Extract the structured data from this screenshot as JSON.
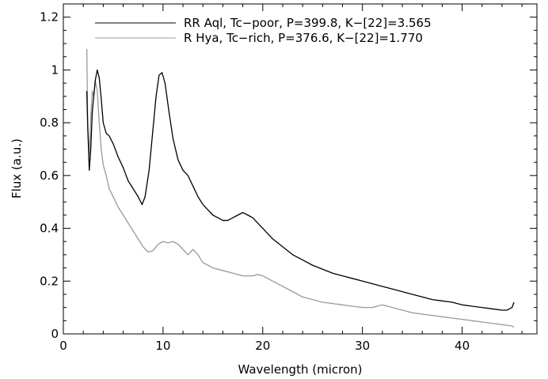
{
  "chart_data": {
    "type": "line",
    "title": "",
    "xlabel": "Wavelength (micron)",
    "ylabel": "Flux (a.u.)",
    "xlim": [
      0,
      47.5
    ],
    "ylim": [
      0,
      1.25
    ],
    "xticks": [
      0,
      10,
      20,
      30,
      40
    ],
    "yticks": [
      0,
      0.2,
      0.4,
      0.6,
      0.8,
      1,
      1.2
    ],
    "ytick_labels": [
      "0",
      "0.2",
      "0.4",
      "0.6",
      "0.8",
      "1",
      "1.2"
    ],
    "grid": false,
    "legend_position": "top-right",
    "series": [
      {
        "name": "RR Aql, Tc−poor, P=399.8, K−[22]=3.565",
        "color": "#000000",
        "x": [
          2.35,
          2.45,
          2.6,
          2.75,
          2.9,
          3.05,
          3.2,
          3.4,
          3.6,
          3.8,
          4.0,
          4.3,
          4.6,
          5.0,
          5.5,
          6.0,
          6.5,
          7.0,
          7.5,
          7.9,
          8.2,
          8.6,
          9.0,
          9.3,
          9.6,
          9.9,
          10.2,
          10.6,
          11.0,
          11.5,
          12.0,
          12.5,
          13.0,
          13.5,
          14.0,
          14.5,
          15.0,
          15.5,
          16.0,
          16.5,
          17.0,
          17.5,
          18.0,
          18.5,
          19.0,
          19.5,
          20.0,
          21.0,
          22.0,
          23.0,
          24.0,
          25.0,
          26.0,
          27.0,
          28.0,
          29.0,
          30.0,
          31.0,
          32.0,
          33.0,
          34.0,
          35.0,
          36.0,
          37.0,
          38.0,
          39.0,
          40.0,
          41.0,
          42.0,
          43.0,
          44.0,
          44.5,
          45.0,
          45.2
        ],
        "y": [
          0.92,
          0.78,
          0.62,
          0.7,
          0.84,
          0.9,
          0.96,
          1.0,
          0.97,
          0.89,
          0.8,
          0.76,
          0.75,
          0.72,
          0.67,
          0.63,
          0.58,
          0.55,
          0.52,
          0.49,
          0.52,
          0.62,
          0.78,
          0.9,
          0.98,
          0.99,
          0.95,
          0.84,
          0.74,
          0.66,
          0.62,
          0.6,
          0.56,
          0.52,
          0.49,
          0.47,
          0.45,
          0.44,
          0.43,
          0.43,
          0.44,
          0.45,
          0.46,
          0.45,
          0.44,
          0.42,
          0.4,
          0.36,
          0.33,
          0.3,
          0.28,
          0.26,
          0.245,
          0.23,
          0.22,
          0.21,
          0.2,
          0.19,
          0.18,
          0.17,
          0.16,
          0.15,
          0.14,
          0.13,
          0.125,
          0.12,
          0.11,
          0.105,
          0.1,
          0.095,
          0.09,
          0.09,
          0.1,
          0.12
        ]
      },
      {
        "name": "R Hya, Tc−rich, P=376.6, K−[22]=1.770",
        "color": "#999999",
        "x": [
          2.35,
          2.45,
          2.6,
          2.75,
          2.9,
          3.05,
          3.2,
          3.4,
          3.6,
          3.8,
          4.0,
          4.3,
          4.6,
          5.0,
          5.5,
          6.0,
          6.5,
          7.0,
          7.5,
          8.0,
          8.5,
          9.0,
          9.5,
          10.0,
          10.5,
          11.0,
          11.5,
          12.0,
          12.5,
          13.0,
          13.5,
          14.0,
          14.5,
          15.0,
          16.0,
          17.0,
          18.0,
          19.0,
          19.5,
          20.0,
          21.0,
          22.0,
          23.0,
          24.0,
          25.0,
          26.0,
          27.0,
          28.0,
          29.0,
          30.0,
          31.0,
          32.0,
          33.0,
          34.0,
          35.0,
          36.0,
          37.0,
          38.0,
          39.0,
          40.0,
          41.0,
          42.0,
          43.0,
          44.0,
          45.0,
          45.2
        ],
        "y": [
          1.08,
          0.78,
          0.68,
          0.82,
          0.92,
          0.9,
          0.96,
          0.92,
          0.8,
          0.7,
          0.64,
          0.6,
          0.55,
          0.52,
          0.48,
          0.45,
          0.42,
          0.39,
          0.36,
          0.33,
          0.31,
          0.315,
          0.34,
          0.35,
          0.345,
          0.35,
          0.34,
          0.32,
          0.3,
          0.32,
          0.3,
          0.27,
          0.26,
          0.25,
          0.24,
          0.23,
          0.22,
          0.22,
          0.225,
          0.22,
          0.2,
          0.18,
          0.16,
          0.14,
          0.13,
          0.12,
          0.115,
          0.11,
          0.105,
          0.1,
          0.1,
          0.11,
          0.1,
          0.09,
          0.08,
          0.075,
          0.07,
          0.065,
          0.06,
          0.055,
          0.05,
          0.045,
          0.04,
          0.035,
          0.03,
          0.025
        ]
      }
    ]
  }
}
